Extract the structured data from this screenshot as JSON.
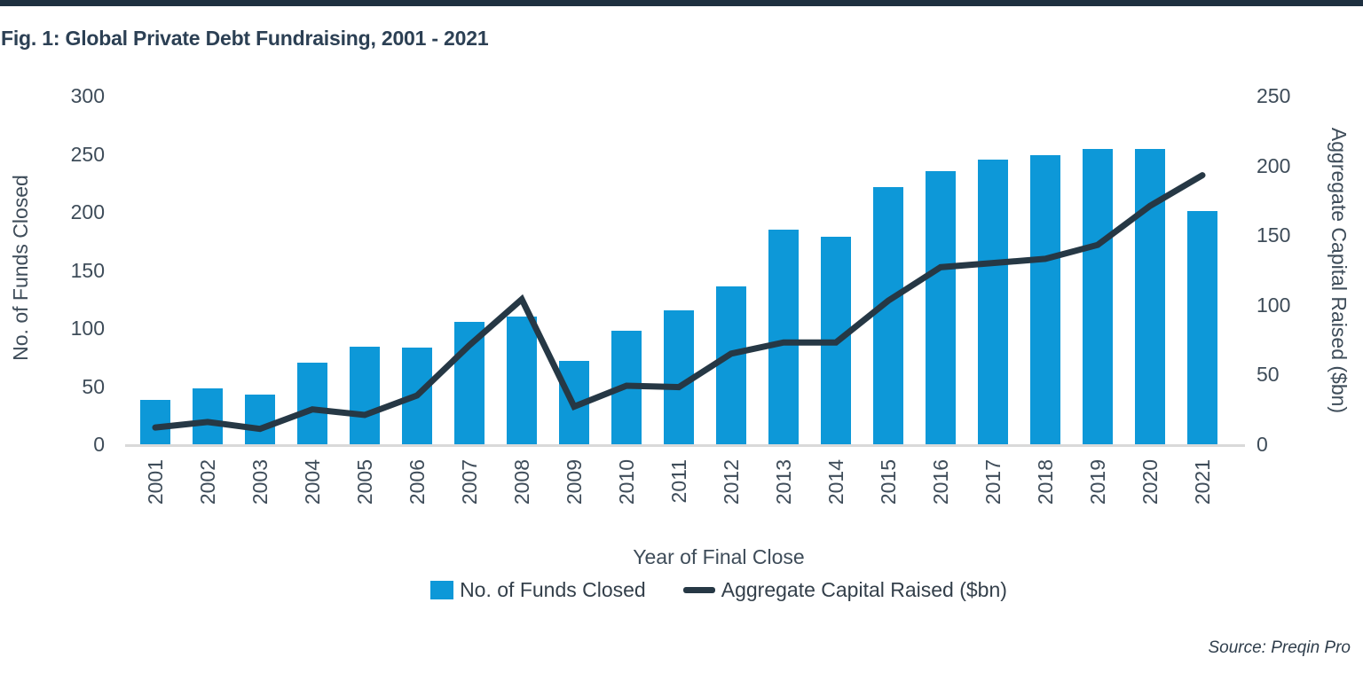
{
  "figure": {
    "title": "Fig. 1: Global Private Debt Fundraising, 2001 - 2021",
    "source": "Source: Preqin Pro"
  },
  "colors": {
    "bar_blue": "#0d98d8",
    "line_dark": "#263845",
    "top_rule": "#1e3040",
    "title_text": "#2c4054",
    "axis_text": "#3e4c59",
    "baseline_grey": "#d9d9d9"
  },
  "chart_data": {
    "type": "bar+line combo",
    "title": "Fig. 1: Global Private Debt Fundraising, 2001 - 2021",
    "categories": [
      "2001",
      "2002",
      "2003",
      "2004",
      "2005",
      "2006",
      "2007",
      "2008",
      "2009",
      "2010",
      "2011",
      "2012",
      "2013",
      "2014",
      "2015",
      "2016",
      "2017",
      "2018",
      "2019",
      "2020",
      "2021"
    ],
    "series": [
      {
        "name": "No. of Funds Closed",
        "type": "bar",
        "axis": "left",
        "color": "#0d98d8",
        "values": [
          38,
          48,
          43,
          70,
          84,
          83,
          105,
          110,
          72,
          98,
          115,
          136,
          185,
          179,
          221,
          235,
          245,
          249,
          254,
          254,
          201
        ]
      },
      {
        "name": "Aggregate Capital Raised ($bn)",
        "type": "line",
        "axis": "right",
        "color": "#263845",
        "values": [
          12,
          16,
          11,
          25,
          21,
          35,
          71,
          104,
          27,
          42,
          41,
          65,
          73,
          73,
          103,
          127,
          130,
          133,
          143,
          171,
          193
        ]
      }
    ],
    "xlabel": "Year of Final Close",
    "left_axis": {
      "label": "No. of Funds Closed",
      "min": 0,
      "max": 300,
      "tick_step": 50,
      "ticks": [
        0,
        50,
        100,
        150,
        200,
        250,
        300
      ]
    },
    "right_axis": {
      "label": "Aggregate Capital Raised ($bn)",
      "min": 0,
      "max": 250,
      "tick_step": 50,
      "ticks": [
        0,
        50,
        100,
        150,
        200,
        250
      ]
    },
    "grid": false,
    "legend_position": "bottom"
  }
}
